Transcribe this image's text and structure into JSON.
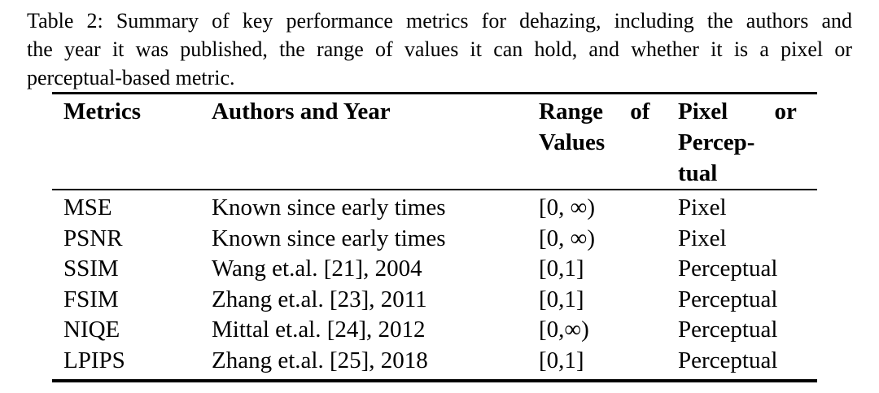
{
  "colors": {
    "text": "#000000",
    "background": "#ffffff",
    "rule": "#000000"
  },
  "caption": {
    "label": "Table 2:",
    "lines": [
      "Table 2: Summary of key performance metrics for dehazing, including the authors and",
      "the year it was published, the range of values it can hold, and whether it is a pixel or",
      "perceptual-based metric."
    ]
  },
  "table": {
    "headers": {
      "metrics": "Metrics",
      "authors_year": "Authors and Year",
      "range": "Range of\nValues",
      "pixel_perceptual": "Pixel or\nPercep-\ntual"
    },
    "rows": [
      {
        "metric": "MSE",
        "authors_year": "Known since early times",
        "range": "[0, ∞)",
        "type": "Pixel"
      },
      {
        "metric": "PSNR",
        "authors_year": "Known since early times",
        "range": "[0, ∞)",
        "type": "Pixel"
      },
      {
        "metric": "SSIM",
        "authors_year": "Wang et.al. [21], 2004",
        "range": "[0,1]",
        "type": "Perceptual"
      },
      {
        "metric": "FSIM",
        "authors_year": "Zhang et.al. [23], 2011",
        "range": "[0,1]",
        "type": "Perceptual"
      },
      {
        "metric": "NIQE",
        "authors_year": "Mittal et.al. [24], 2012",
        "range": "[0,∞)",
        "type": "Perceptual"
      },
      {
        "metric": "LPIPS",
        "authors_year": "Zhang et.al. [25], 2018",
        "range": "[0,1]",
        "type": "Perceptual"
      }
    ]
  }
}
